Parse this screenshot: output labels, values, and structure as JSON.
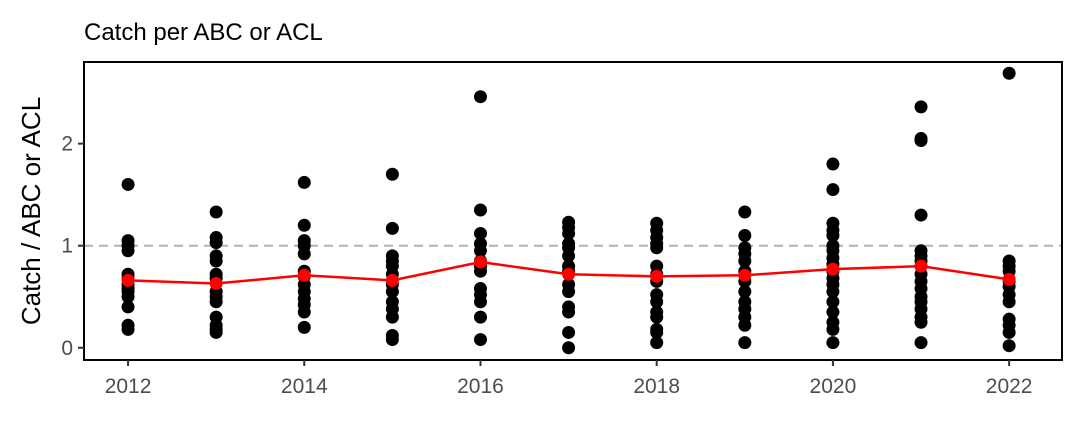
{
  "chart_data": {
    "type": "scatter",
    "title": "Catch per ABC or ACL",
    "xlabel": "",
    "ylabel": "Catch / ABC or ACL",
    "xlim": [
      2011.5,
      2022.6
    ],
    "ylim": [
      -0.12,
      2.8
    ],
    "x_ticks": [
      2012,
      2014,
      2016,
      2018,
      2020,
      2022
    ],
    "x_tick_labels": [
      "2012",
      "2014",
      "2016",
      "2018",
      "2020",
      "2022"
    ],
    "y_ticks": [
      0,
      1,
      2
    ],
    "y_tick_labels": [
      "0",
      "1",
      "2"
    ],
    "reference_line": {
      "y": 1,
      "style": "dashed",
      "color": "#b3b3b3"
    },
    "grid": false,
    "series": [
      {
        "type": "scatter",
        "color": "#000000",
        "points": [
          [
            2012,
            1.6
          ],
          [
            2012,
            1.05
          ],
          [
            2012,
            1.0
          ],
          [
            2012,
            0.95
          ],
          [
            2012,
            0.72
          ],
          [
            2012,
            0.68
          ],
          [
            2012,
            0.62
          ],
          [
            2012,
            0.58
          ],
          [
            2012,
            0.55
          ],
          [
            2012,
            0.5
          ],
          [
            2012,
            0.4
          ],
          [
            2012,
            0.22
          ],
          [
            2012,
            0.18
          ],
          [
            2013,
            1.33
          ],
          [
            2013,
            1.08
          ],
          [
            2013,
            1.03
          ],
          [
            2013,
            0.9
          ],
          [
            2013,
            0.85
          ],
          [
            2013,
            0.72
          ],
          [
            2013,
            0.68
          ],
          [
            2013,
            0.55
          ],
          [
            2013,
            0.5
          ],
          [
            2013,
            0.45
          ],
          [
            2013,
            0.3
          ],
          [
            2013,
            0.22
          ],
          [
            2013,
            0.18
          ],
          [
            2013,
            0.15
          ],
          [
            2014,
            1.62
          ],
          [
            2014,
            1.2
          ],
          [
            2014,
            1.05
          ],
          [
            2014,
            1.0
          ],
          [
            2014,
            0.92
          ],
          [
            2014,
            0.75
          ],
          [
            2014,
            0.7
          ],
          [
            2014,
            0.62
          ],
          [
            2014,
            0.55
          ],
          [
            2014,
            0.48
          ],
          [
            2014,
            0.42
          ],
          [
            2014,
            0.35
          ],
          [
            2014,
            0.2
          ],
          [
            2015,
            1.7
          ],
          [
            2015,
            1.17
          ],
          [
            2015,
            0.9
          ],
          [
            2015,
            0.85
          ],
          [
            2015,
            0.8
          ],
          [
            2015,
            0.72
          ],
          [
            2015,
            0.62
          ],
          [
            2015,
            0.55
          ],
          [
            2015,
            0.45
          ],
          [
            2015,
            0.38
          ],
          [
            2015,
            0.3
          ],
          [
            2015,
            0.12
          ],
          [
            2015,
            0.08
          ],
          [
            2016,
            2.46
          ],
          [
            2016,
            1.35
          ],
          [
            2016,
            1.12
          ],
          [
            2016,
            1.02
          ],
          [
            2016,
            0.95
          ],
          [
            2016,
            0.85
          ],
          [
            2016,
            0.8
          ],
          [
            2016,
            0.75
          ],
          [
            2016,
            0.58
          ],
          [
            2016,
            0.52
          ],
          [
            2016,
            0.45
          ],
          [
            2016,
            0.3
          ],
          [
            2016,
            0.08
          ],
          [
            2017,
            1.23
          ],
          [
            2017,
            1.18
          ],
          [
            2017,
            1.12
          ],
          [
            2017,
            1.02
          ],
          [
            2017,
            0.98
          ],
          [
            2017,
            0.9
          ],
          [
            2017,
            0.8
          ],
          [
            2017,
            0.75
          ],
          [
            2017,
            0.62
          ],
          [
            2017,
            0.55
          ],
          [
            2017,
            0.4
          ],
          [
            2017,
            0.35
          ],
          [
            2017,
            0.15
          ],
          [
            2017,
            0.0
          ],
          [
            2018,
            1.22
          ],
          [
            2018,
            1.15
          ],
          [
            2018,
            1.08
          ],
          [
            2018,
            1.02
          ],
          [
            2018,
            0.98
          ],
          [
            2018,
            0.8
          ],
          [
            2018,
            0.72
          ],
          [
            2018,
            0.65
          ],
          [
            2018,
            0.52
          ],
          [
            2018,
            0.45
          ],
          [
            2018,
            0.35
          ],
          [
            2018,
            0.3
          ],
          [
            2018,
            0.18
          ],
          [
            2018,
            0.15
          ],
          [
            2018,
            0.05
          ],
          [
            2019,
            1.33
          ],
          [
            2019,
            1.1
          ],
          [
            2019,
            0.98
          ],
          [
            2019,
            0.92
          ],
          [
            2019,
            0.85
          ],
          [
            2019,
            0.75
          ],
          [
            2019,
            0.65
          ],
          [
            2019,
            0.55
          ],
          [
            2019,
            0.45
          ],
          [
            2019,
            0.38
          ],
          [
            2019,
            0.3
          ],
          [
            2019,
            0.22
          ],
          [
            2019,
            0.05
          ],
          [
            2020,
            1.8
          ],
          [
            2020,
            1.55
          ],
          [
            2020,
            1.22
          ],
          [
            2020,
            1.15
          ],
          [
            2020,
            1.1
          ],
          [
            2020,
            1.0
          ],
          [
            2020,
            0.95
          ],
          [
            2020,
            0.88
          ],
          [
            2020,
            0.82
          ],
          [
            2020,
            0.75
          ],
          [
            2020,
            0.68
          ],
          [
            2020,
            0.62
          ],
          [
            2020,
            0.55
          ],
          [
            2020,
            0.45
          ],
          [
            2020,
            0.35
          ],
          [
            2020,
            0.25
          ],
          [
            2020,
            0.18
          ],
          [
            2020,
            0.05
          ],
          [
            2021,
            2.36
          ],
          [
            2021,
            2.05
          ],
          [
            2021,
            2.03
          ],
          [
            2021,
            1.3
          ],
          [
            2021,
            0.95
          ],
          [
            2021,
            0.9
          ],
          [
            2021,
            0.85
          ],
          [
            2021,
            0.8
          ],
          [
            2021,
            0.72
          ],
          [
            2021,
            0.65
          ],
          [
            2021,
            0.58
          ],
          [
            2021,
            0.5
          ],
          [
            2021,
            0.45
          ],
          [
            2021,
            0.38
          ],
          [
            2021,
            0.3
          ],
          [
            2021,
            0.25
          ],
          [
            2021,
            0.05
          ],
          [
            2022,
            2.69
          ],
          [
            2022,
            0.85
          ],
          [
            2022,
            0.8
          ],
          [
            2022,
            0.75
          ],
          [
            2022,
            0.65
          ],
          [
            2022,
            0.6
          ],
          [
            2022,
            0.52
          ],
          [
            2022,
            0.45
          ],
          [
            2022,
            0.28
          ],
          [
            2022,
            0.22
          ],
          [
            2022,
            0.15
          ],
          [
            2022,
            0.02
          ]
        ]
      },
      {
        "type": "line",
        "color": "#ff0000",
        "x": [
          2012,
          2013,
          2014,
          2015,
          2016,
          2017,
          2018,
          2019,
          2020,
          2021,
          2022
        ],
        "values": [
          0.66,
          0.63,
          0.71,
          0.66,
          0.84,
          0.72,
          0.7,
          0.71,
          0.77,
          0.8,
          0.67
        ]
      }
    ]
  }
}
